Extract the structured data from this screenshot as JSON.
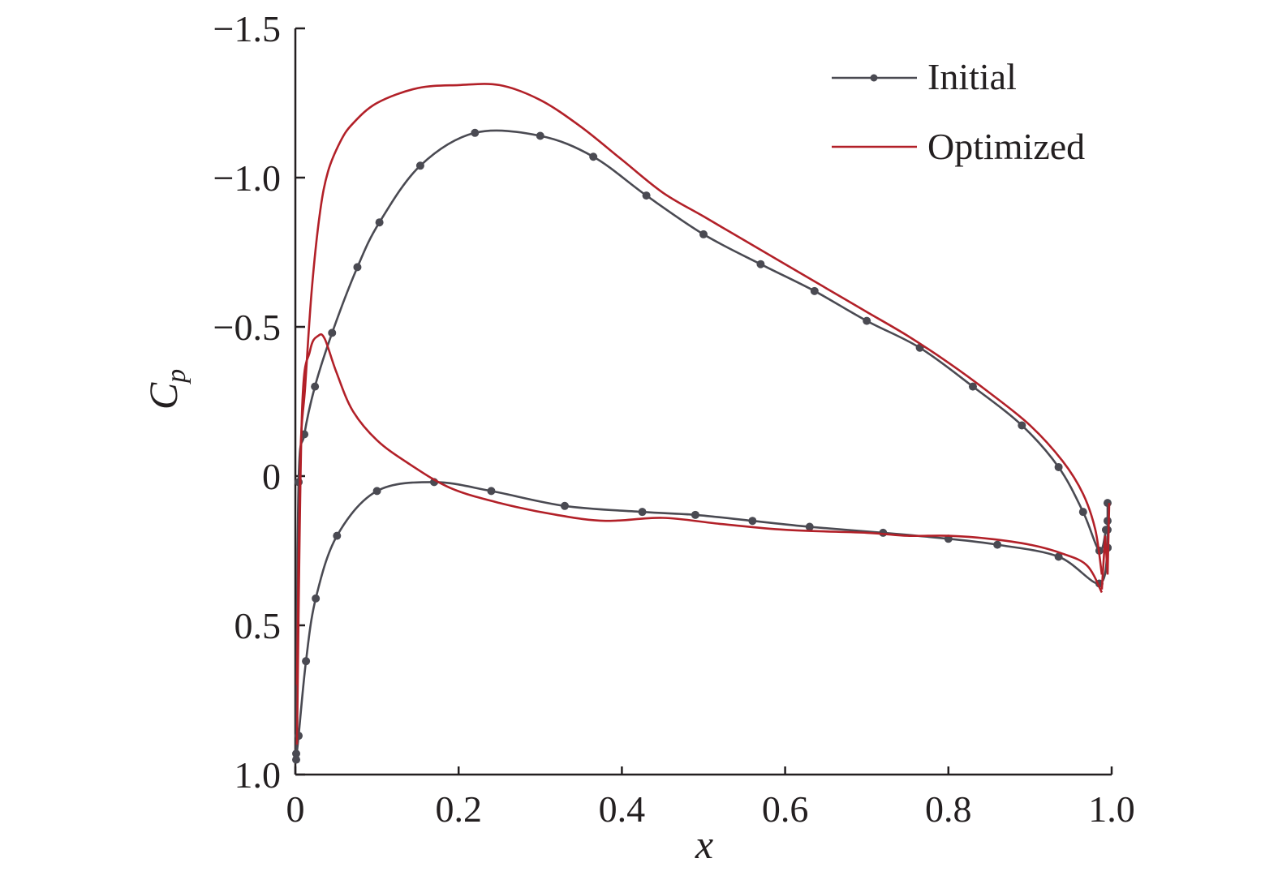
{
  "chart_data": {
    "type": "line",
    "xlabel": "x",
    "ylabel": {
      "main": "C",
      "sub": "p"
    },
    "xlim": [
      0,
      1.0
    ],
    "ylim": [
      1.0,
      -1.5
    ],
    "y_inverted": true,
    "x_ticks": [
      "0",
      "0.2",
      "0.4",
      "0.6",
      "0.8",
      "1.0"
    ],
    "x_tick_values": [
      0,
      0.2,
      0.4,
      0.6,
      0.8,
      1.0
    ],
    "y_ticks": [
      "1.0",
      "0.5",
      "0",
      "−0.5",
      "−1.0",
      "−1.5"
    ],
    "y_tick_values": [
      1.0,
      0.5,
      0,
      -0.5,
      -1.0,
      -1.5
    ],
    "grid": false,
    "legend_position": "top-right",
    "colors": {
      "initial": "#4a4a52",
      "optimized": "#b22028",
      "axis": "#231f20"
    },
    "series": [
      {
        "name": "Initial",
        "markers": true,
        "upper_surface": {
          "x": [
            0.001,
            0.004,
            0.011,
            0.024,
            0.045,
            0.076,
            0.103,
            0.153,
            0.22,
            0.3,
            0.365,
            0.43,
            0.5,
            0.57,
            0.636,
            0.7,
            0.765,
            0.83,
            0.89,
            0.935,
            0.965,
            0.985,
            0.993
          ],
          "y": [
            0.93,
            0.02,
            -0.14,
            -0.3,
            -0.48,
            -0.7,
            -0.85,
            -1.04,
            -1.15,
            -1.14,
            -1.07,
            -0.94,
            -0.81,
            -0.71,
            -0.62,
            -0.52,
            -0.43,
            -0.3,
            -0.17,
            -0.03,
            0.12,
            0.25,
            0.18
          ]
        },
        "lower_surface": {
          "x": [
            0.001,
            0.004,
            0.013,
            0.025,
            0.051,
            0.1,
            0.17,
            0.24,
            0.33,
            0.425,
            0.49,
            0.56,
            0.63,
            0.72,
            0.8,
            0.86,
            0.935,
            0.985,
            0.995
          ],
          "y": [
            0.95,
            0.87,
            0.62,
            0.41,
            0.2,
            0.05,
            0.02,
            0.05,
            0.1,
            0.12,
            0.13,
            0.15,
            0.17,
            0.19,
            0.21,
            0.23,
            0.27,
            0.36,
            0.24
          ]
        },
        "trailing_edge": {
          "x": [
            0.995,
            0.995,
            0.995,
            0.995
          ],
          "y": [
            0.09,
            0.15,
            0.18,
            0.24
          ]
        }
      },
      {
        "name": "Optimized",
        "markers": false,
        "upper_surface": {
          "x": [
            0.002,
            0.006,
            0.012,
            0.02,
            0.03,
            0.04,
            0.055,
            0.07,
            0.1,
            0.15,
            0.2,
            0.25,
            0.3,
            0.35,
            0.4,
            0.45,
            0.5,
            0.55,
            0.6,
            0.65,
            0.7,
            0.75,
            0.8,
            0.85,
            0.9,
            0.94,
            0.965,
            0.98,
            0.988
          ],
          "y": [
            0.7,
            -0.05,
            -0.3,
            -0.62,
            -0.88,
            -1.02,
            -1.12,
            -1.18,
            -1.25,
            -1.3,
            -1.31,
            -1.31,
            -1.26,
            -1.17,
            -1.06,
            -0.95,
            -0.87,
            -0.79,
            -0.71,
            -0.63,
            -0.55,
            -0.47,
            -0.38,
            -0.28,
            -0.17,
            -0.05,
            0.06,
            0.18,
            0.33
          ]
        },
        "lower_surface": {
          "x": [
            0.002,
            0.008,
            0.018,
            0.028,
            0.036,
            0.05,
            0.07,
            0.1,
            0.14,
            0.19,
            0.25,
            0.32,
            0.38,
            0.45,
            0.52,
            0.6,
            0.7,
            0.75,
            0.8,
            0.85,
            0.9,
            0.94,
            0.97,
            0.988
          ],
          "y": [
            0.9,
            -0.2,
            -0.42,
            -0.47,
            -0.46,
            -0.35,
            -0.22,
            -0.12,
            -0.04,
            0.04,
            0.09,
            0.13,
            0.15,
            0.14,
            0.16,
            0.18,
            0.19,
            0.2,
            0.2,
            0.21,
            0.23,
            0.26,
            0.3,
            0.39
          ]
        },
        "trailing_edge": {
          "x": [
            0.988,
            0.992,
            0.995,
            0.997
          ],
          "y": [
            0.38,
            0.2,
            0.33,
            0.09
          ]
        }
      }
    ]
  }
}
